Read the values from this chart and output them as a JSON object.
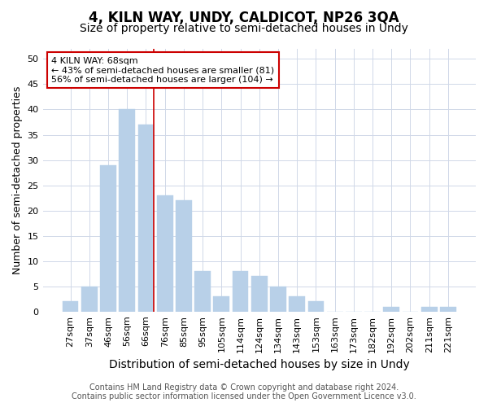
{
  "title1": "4, KILN WAY, UNDY, CALDICOT, NP26 3QA",
  "title2": "Size of property relative to semi-detached houses in Undy",
  "xlabel": "Distribution of semi-detached houses by size in Undy",
  "ylabel": "Number of semi-detached properties",
  "categories": [
    "27sqm",
    "37sqm",
    "46sqm",
    "56sqm",
    "66sqm",
    "76sqm",
    "85sqm",
    "95sqm",
    "105sqm",
    "114sqm",
    "124sqm",
    "134sqm",
    "143sqm",
    "153sqm",
    "163sqm",
    "173sqm",
    "182sqm",
    "192sqm",
    "202sqm",
    "211sqm",
    "221sqm"
  ],
  "values": [
    2,
    5,
    29,
    40,
    37,
    23,
    22,
    8,
    3,
    8,
    7,
    5,
    3,
    2,
    0,
    0,
    0,
    1,
    0,
    1,
    1
  ],
  "bar_color": "#b8d0e8",
  "bar_edge_color": "#b8d0e8",
  "vline_x": 4.0,
  "vline_color": "#cc0000",
  "annotation_title": "4 KILN WAY: 68sqm",
  "annotation_line1": "← 43% of semi-detached houses are smaller (81)",
  "annotation_line2": "56% of semi-detached houses are larger (104) →",
  "annotation_box_color": "#ffffff",
  "annotation_box_edge": "#cc0000",
  "ylim": [
    0,
    52
  ],
  "yticks": [
    0,
    5,
    10,
    15,
    20,
    25,
    30,
    35,
    40,
    45,
    50
  ],
  "footer1": "Contains HM Land Registry data © Crown copyright and database right 2024.",
  "footer2": "Contains public sector information licensed under the Open Government Licence v3.0.",
  "bg_color": "#ffffff",
  "plot_bg_color": "#ffffff",
  "grid_color": "#d0d8e8",
  "title1_fontsize": 12,
  "title2_fontsize": 10,
  "xlabel_fontsize": 10,
  "ylabel_fontsize": 9,
  "tick_fontsize": 8,
  "footer_fontsize": 7,
  "annotation_fontsize": 8
}
